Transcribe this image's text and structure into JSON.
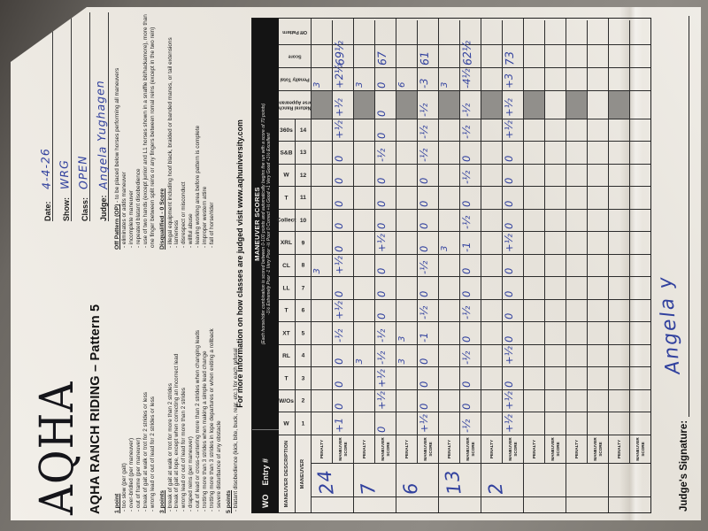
{
  "photo": {
    "background_color": "#86827c",
    "paper_color": "#ebe7e0",
    "ink_color": "#232323",
    "pen_color": "#31419e",
    "shaded_cell_color": "#918f8b",
    "orientation": "paper rotated 90 degrees counter-clockwise in photo"
  },
  "header": {
    "logo": "AQHA",
    "title": "AQHA RANCH RIDING – Pattern 5",
    "fields": [
      {
        "label": "Date:",
        "value": "4-4-26"
      },
      {
        "label": "Show:",
        "value": "WRG"
      },
      {
        "label": "Class:",
        "value": "OPEN"
      },
      {
        "label": "Judge:",
        "value": "Angela Yughagen"
      }
    ]
  },
  "guidelines": {
    "left": [
      {
        "heading": "1 point",
        "suffix": "",
        "items": [
          "- too slow (per gait)",
          "- over-bridled (per maneuver)",
          "- out of frame (per maneuver)",
          "- break of gait at walk or trot for 2 strides or less",
          "- wrong lead or out of lead for 2 strides or less"
        ]
      },
      {
        "heading": "3 points",
        "suffix": "",
        "items": [
          "- break of gait at walk or trot for more than 2 strides",
          "- break of gait at lope, except when correcting an incorrect lead",
          "- wrong lead or out of lead for more than 2 strides",
          "- draped reins (per maneuver)",
          "- out of lead or cross-cantering more than 2 strides when changing leads",
          "- trotting more than 3 strides when making a simple lead change",
          "- trotting more than 3 strides in lope departures or when exiting a rollback",
          "- severe disturbance of any obstacle"
        ]
      },
      {
        "heading": "5 points",
        "suffix": "",
        "items": [
          "- blatant disobedience (kick, bite, buck, rear, etc.) for each refusal"
        ]
      }
    ],
    "right": [
      {
        "heading": "Off Pattern (OP)",
        "suffix": " - to be placed below horses performing all maneuvers",
        "items": [
          "- eliminates or adds maneuver",
          "- incomplete maneuver",
          "- repeated blatant disobedience",
          "- use of two hands (except junior and L1 horses shown in a snaffle bit/hackamore), more than one finger between split reins or any fingers between romal reins (except in the two rein)"
        ]
      },
      {
        "heading": "Disqualified - 0 Score",
        "suffix": "",
        "items": [
          "- illegal equipment including hoof black, braided or banded manes, or tail extensions",
          "- lameness",
          "- disrespect or misconduct",
          "- willful abuse",
          "- leaving working area before pattern is complete",
          "- improper western attire",
          "- fall of horse/rider"
        ]
      }
    ]
  },
  "info_line": "For more information on how classes are judged visit www.aqhuniversity.com",
  "table": {
    "wo_label": "WO",
    "entry_label": "Entry #",
    "maneuver_scores_title": "MANEUVER SCORES",
    "maneuver_scores_note1": "(Each horse/rider combination is scored between 0-100 points and automatically begins the run with a score of 70 points)",
    "maneuver_scores_note2": "-1½ Extremely Poor   -1 Very Poor   -½ Poor   0 Correct   +½ Good   +1 Very Good   +1½ Excellent",
    "desc_label": "MANEUVER DESCRIPTION",
    "maneuver_label": "MANEUVER",
    "penalty_row_label": "PENALTY",
    "score_row_label": "MANEUVER SCORE",
    "codes": [
      "W",
      "W/Os",
      "T",
      "RL",
      "XT",
      "T",
      "LL",
      "CL",
      "XRL",
      "Collect",
      "T",
      "W",
      "S&B",
      "360s"
    ],
    "numbers": [
      "1",
      "2",
      "3",
      "4",
      "5",
      "6",
      "7",
      "8",
      "9",
      "10",
      "11",
      "12",
      "13",
      "14"
    ],
    "right_columns": [
      "Natural Ranch|Horse Appearance",
      "Penalty Total",
      "Score",
      "Off Pattern"
    ],
    "entries": [
      {
        "entry": "24",
        "penalties": {
          "8": "3"
        },
        "scores": [
          "+1",
          "0",
          "0",
          "0",
          "-½",
          "+½",
          "0",
          "+½",
          "0",
          "0",
          "0",
          "0",
          "0",
          "+½"
        ],
        "nrha": "+½",
        "penalty_total": "3",
        "tally": "+2½",
        "score": "69½",
        "off_pattern": ""
      },
      {
        "entry": "7",
        "penalties": {
          "4": "3"
        },
        "scores": [
          "0",
          "+½",
          "+½",
          "-½",
          "-½",
          "0",
          "0",
          "0",
          "+½",
          "0",
          "0",
          "0",
          "-½",
          "0"
        ],
        "nrha": "0",
        "penalty_total": "3",
        "tally": "0",
        "score": "67",
        "off_pattern": ""
      },
      {
        "entry": "6",
        "penalties": {
          "4": "3",
          "5": "3"
        },
        "scores": [
          "+½",
          "0",
          "0",
          "0",
          "-1",
          "-½",
          "0",
          "-½",
          "0",
          "0",
          "0",
          "0",
          "-½",
          "-½"
        ],
        "nrha": "-½",
        "penalty_total": "6",
        "tally": "-3",
        "score": "61",
        "off_pattern": ""
      },
      {
        "entry": "13",
        "penalties": {
          "9": "3"
        },
        "scores": [
          "-½",
          "0",
          "0",
          "-½",
          "0",
          "-½",
          "0",
          "0",
          "-1",
          "-½",
          "0",
          "-½",
          "0",
          "-½"
        ],
        "nrha": "-½",
        "penalty_total": "3",
        "tally": "-4½",
        "score": "62½",
        "off_pattern": ""
      },
      {
        "entry": "2",
        "penalties": {},
        "scores": [
          "+½",
          "+½",
          "0",
          "+½",
          "0",
          "0",
          "0",
          "0",
          "+½",
          "0",
          "0",
          "0",
          "0",
          "+½"
        ],
        "nrha": "+½",
        "penalty_total": "",
        "tally": "+3",
        "score": "73",
        "off_pattern": ""
      },
      {
        "entry": "",
        "penalties": {},
        "scores": [
          "",
          "",
          "",
          "",
          "",
          "",
          "",
          "",
          "",
          "",
          "",
          "",
          "",
          ""
        ],
        "nrha": "",
        "penalty_total": "",
        "tally": "",
        "score": "",
        "off_pattern": ""
      },
      {
        "entry": "",
        "penalties": {},
        "scores": [
          "",
          "",
          "",
          "",
          "",
          "",
          "",
          "",
          "",
          "",
          "",
          "",
          "",
          ""
        ],
        "nrha": "",
        "penalty_total": "",
        "tally": "",
        "score": "",
        "off_pattern": ""
      },
      {
        "entry": "",
        "penalties": {},
        "scores": [
          "",
          "",
          "",
          "",
          "",
          "",
          "",
          "",
          "",
          "",
          "",
          "",
          "",
          ""
        ],
        "nrha": "",
        "penalty_total": "",
        "tally": "",
        "score": "",
        "off_pattern": ""
      }
    ]
  },
  "signature": {
    "label": "Judge's Signature:",
    "name": "Angela y"
  }
}
